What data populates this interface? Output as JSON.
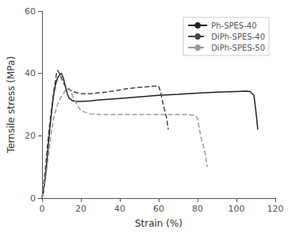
{
  "chart_data": {
    "type": "line",
    "xlabel": "Strain (%)",
    "ylabel": "Ternsile stress (MPa)",
    "xlim": [
      0,
      120
    ],
    "ylim": [
      0,
      60
    ],
    "xticks": [
      0,
      20,
      40,
      60,
      80,
      100,
      120
    ],
    "yticks": [
      0,
      20,
      40,
      60
    ],
    "grid": false,
    "legend": "upper right",
    "series": [
      {
        "name": "Ph-SPES-40",
        "color": "#222222",
        "line_style": "solid",
        "x": [
          0,
          0.5,
          1,
          2,
          3,
          4,
          5,
          6,
          7,
          8,
          9,
          10,
          11,
          12,
          13,
          14,
          16,
          18,
          20,
          25,
          30,
          40,
          50,
          60,
          70,
          80,
          90,
          100,
          105,
          107,
          109,
          110,
          111
        ],
        "values": [
          0,
          1,
          3,
          8,
          15,
          22,
          28,
          33,
          36.5,
          38.5,
          39.5,
          40,
          38.5,
          36,
          33.5,
          32,
          31.2,
          31.0,
          31.0,
          31.2,
          31.5,
          32.0,
          32.5,
          33.0,
          33.3,
          33.7,
          34.0,
          34.2,
          34.3,
          34.2,
          33.0,
          28,
          22
        ]
      },
      {
        "name": "DiPh-SPES-40",
        "color": "#444444",
        "line_style": "dashed",
        "x": [
          0,
          0.5,
          1,
          2,
          3,
          4,
          5,
          6,
          7,
          7.5,
          8,
          9,
          10,
          11,
          12,
          13,
          14,
          15,
          16,
          18,
          20,
          25,
          30,
          35,
          40,
          45,
          50,
          55,
          60,
          61,
          62,
          63,
          64,
          65
        ],
        "values": [
          0,
          2,
          5,
          11,
          18,
          24,
          29,
          34,
          38,
          40,
          41,
          40,
          38.5,
          37,
          36,
          35.2,
          34.8,
          34.5,
          34.2,
          33.8,
          33.5,
          33.5,
          33.8,
          34.2,
          34.7,
          35.2,
          35.5,
          35.8,
          36.0,
          34,
          31,
          28.5,
          26,
          22
        ]
      },
      {
        "name": "DiPh-SPES-50",
        "color": "#999999",
        "line_style": "dashed",
        "x": [
          0,
          0.5,
          1,
          2,
          3,
          4,
          5,
          6,
          7,
          8,
          9,
          10,
          11,
          12,
          13,
          14,
          15,
          16,
          18,
          20,
          25,
          30,
          40,
          50,
          60,
          70,
          75,
          79,
          80,
          81,
          82,
          83,
          84,
          85
        ],
        "values": [
          0,
          1,
          3,
          7,
          12,
          17,
          22,
          25.5,
          28,
          30,
          31.5,
          32.5,
          33.5,
          34.5,
          35.0,
          35.2,
          34.0,
          32.5,
          30.0,
          28.0,
          27.0,
          26.8,
          26.8,
          26.8,
          26.8,
          26.8,
          26.8,
          26.5,
          25.5,
          22,
          19,
          17,
          14,
          10
        ]
      }
    ]
  }
}
